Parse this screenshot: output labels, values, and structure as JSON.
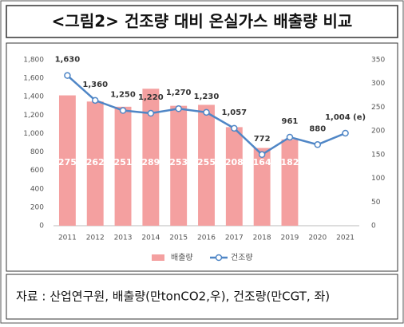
{
  "title": "<그림2> 건조량 대비 온실가스 배출량 비교",
  "chart_data": {
    "type": "combo",
    "categories": [
      "2011",
      "2012",
      "2013",
      "2014",
      "2015",
      "2016",
      "2017",
      "2018",
      "2019",
      "2020",
      "2021"
    ],
    "series": [
      {
        "name": "배출량",
        "type": "bar",
        "axis": "y2",
        "color": "#f4a0a0",
        "values": [
          275,
          262,
          251,
          289,
          253,
          255,
          208,
          164,
          182,
          null,
          null
        ]
      },
      {
        "name": "건조량",
        "type": "line",
        "color": "#4f86c6",
        "values": [
          1630,
          1360,
          1250,
          1220,
          1270,
          1230,
          1057,
          772,
          961,
          880,
          1004
        ],
        "value_labels": [
          "1,630",
          "1,360",
          "1,250",
          "1,220",
          "1,270",
          "1,230",
          "1,057",
          "772",
          "961",
          "880",
          "1,004 (e)"
        ]
      }
    ],
    "ylim": [
      0,
      1800
    ],
    "yticks": [
      0,
      200,
      400,
      600,
      800,
      {
        "value": 1000,
        "label": "1,000"
      },
      {
        "value": 1200,
        "label": "1,200"
      },
      {
        "value": 1400,
        "label": "1,400"
      },
      {
        "value": 1600,
        "label": "1,600"
      },
      {
        "value": 1800,
        "label": "1,800"
      }
    ],
    "y2lim": [
      0,
      350
    ],
    "y2ticks": [
      0,
      50,
      100,
      150,
      200,
      250,
      300,
      350
    ],
    "legend": "bottom"
  },
  "source": "자료 : 산업연구원, 배출량(만tonCO2,우), 건조량(만CGT, 좌)"
}
